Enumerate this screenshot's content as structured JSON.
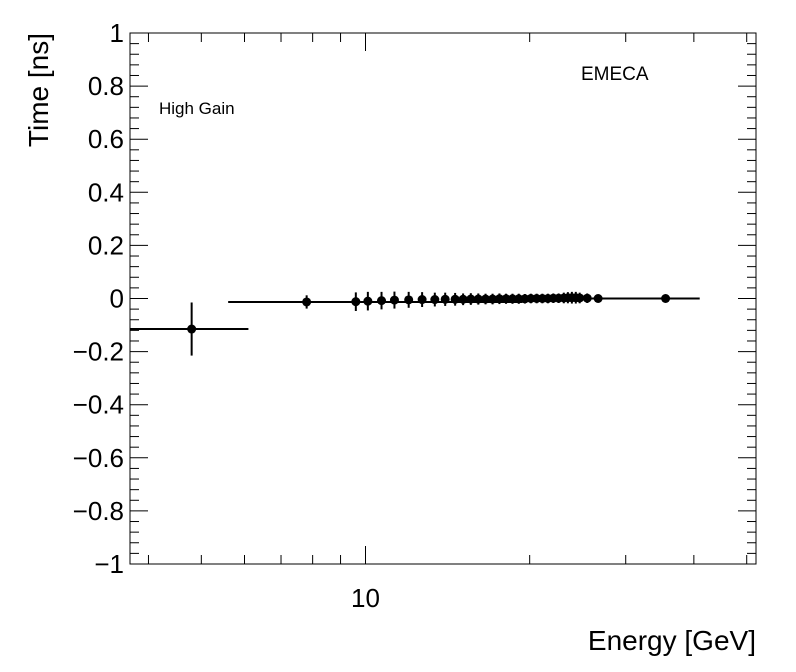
{
  "chart_data": {
    "type": "scatter",
    "xscale": "log",
    "xlim": [
      3.7,
      52
    ],
    "ylim": [
      -1,
      1
    ],
    "xlabel": "Energy [GeV]",
    "ylabel": "Time [ns]",
    "x_tick_labels": [
      {
        "value": 10,
        "label": "10"
      }
    ],
    "y_tick_labels": [
      {
        "value": 1,
        "label": "1"
      },
      {
        "value": 0.8,
        "label": "0.8"
      },
      {
        "value": 0.6,
        "label": "0.6"
      },
      {
        "value": 0.4,
        "label": "0.4"
      },
      {
        "value": 0.2,
        "label": "0.2"
      },
      {
        "value": 0,
        "label": "0"
      },
      {
        "value": -0.2,
        "label": "−0.2"
      },
      {
        "value": -0.4,
        "label": "−0.4"
      },
      {
        "value": -0.6,
        "label": "−0.6"
      },
      {
        "value": -0.8,
        "label": "−0.8"
      },
      {
        "value": -1,
        "label": "−1"
      }
    ],
    "annotations": [
      "EMECA",
      "High Gain"
    ],
    "grid": false,
    "legend": "none",
    "points": [
      {
        "x": 4.8,
        "y": -0.115,
        "xerr_lo": 1.1,
        "xerr_hi": 1.3,
        "yerr": 0.1
      },
      {
        "x": 7.8,
        "y": -0.013,
        "xerr_lo": 2.2,
        "xerr_hi": 11.6,
        "yerr": 0.025
      },
      {
        "x": 9.6,
        "y": -0.012,
        "yerr": 0.035
      },
      {
        "x": 10.1,
        "y": -0.01,
        "yerr": 0.035
      },
      {
        "x": 10.7,
        "y": -0.008,
        "yerr": 0.033
      },
      {
        "x": 11.3,
        "y": -0.006,
        "yerr": 0.032
      },
      {
        "x": 12.0,
        "y": -0.005,
        "yerr": 0.03
      },
      {
        "x": 12.7,
        "y": -0.004,
        "yerr": 0.028
      },
      {
        "x": 13.4,
        "y": -0.004,
        "yerr": 0.026
      },
      {
        "x": 14.0,
        "y": -0.003,
        "yerr": 0.025
      },
      {
        "x": 14.6,
        "y": -0.003,
        "yerr": 0.024
      },
      {
        "x": 15.1,
        "y": -0.003,
        "yerr": 0.022
      },
      {
        "x": 15.6,
        "y": -0.002,
        "yerr": 0.022
      },
      {
        "x": 16.1,
        "y": -0.002,
        "yerr": 0.021
      },
      {
        "x": 16.6,
        "y": -0.002,
        "yerr": 0.02
      },
      {
        "x": 17.1,
        "y": -0.002,
        "yerr": 0.02
      },
      {
        "x": 17.6,
        "y": -0.001,
        "yerr": 0.02
      },
      {
        "x": 18.1,
        "y": -0.001,
        "yerr": 0.019
      },
      {
        "x": 18.6,
        "y": -0.001,
        "yerr": 0.019
      },
      {
        "x": 19.1,
        "y": -0.001,
        "yerr": 0.019
      },
      {
        "x": 19.6,
        "y": -0.001,
        "yerr": 0.018
      },
      {
        "x": 20.1,
        "y": 0.0,
        "yerr": 0.018
      },
      {
        "x": 20.6,
        "y": 0.0,
        "yerr": 0.018
      },
      {
        "x": 21.1,
        "y": 0.0,
        "yerr": 0.018
      },
      {
        "x": 21.6,
        "y": 0.0,
        "yerr": 0.018
      },
      {
        "x": 22.1,
        "y": 0.001,
        "yerr": 0.018
      },
      {
        "x": 22.6,
        "y": 0.001,
        "yerr": 0.018
      },
      {
        "x": 23.1,
        "y": 0.002,
        "yerr": 0.02
      },
      {
        "x": 23.5,
        "y": 0.003,
        "yerr": 0.021
      },
      {
        "x": 23.9,
        "y": 0.003,
        "yerr": 0.022
      },
      {
        "x": 24.3,
        "y": 0.003,
        "yerr": 0.022
      },
      {
        "x": 24.7,
        "y": 0.002,
        "yerr": 0.02
      },
      {
        "x": 25.5,
        "y": 0.001,
        "yerr": 0.018
      },
      {
        "x": 26.7,
        "y": 0.0,
        "yerr": 0.015
      },
      {
        "x": 35.5,
        "y": 0.0,
        "xerr_lo": 10.8,
        "xerr_hi": 5.5,
        "yerr": 0.008
      }
    ]
  }
}
